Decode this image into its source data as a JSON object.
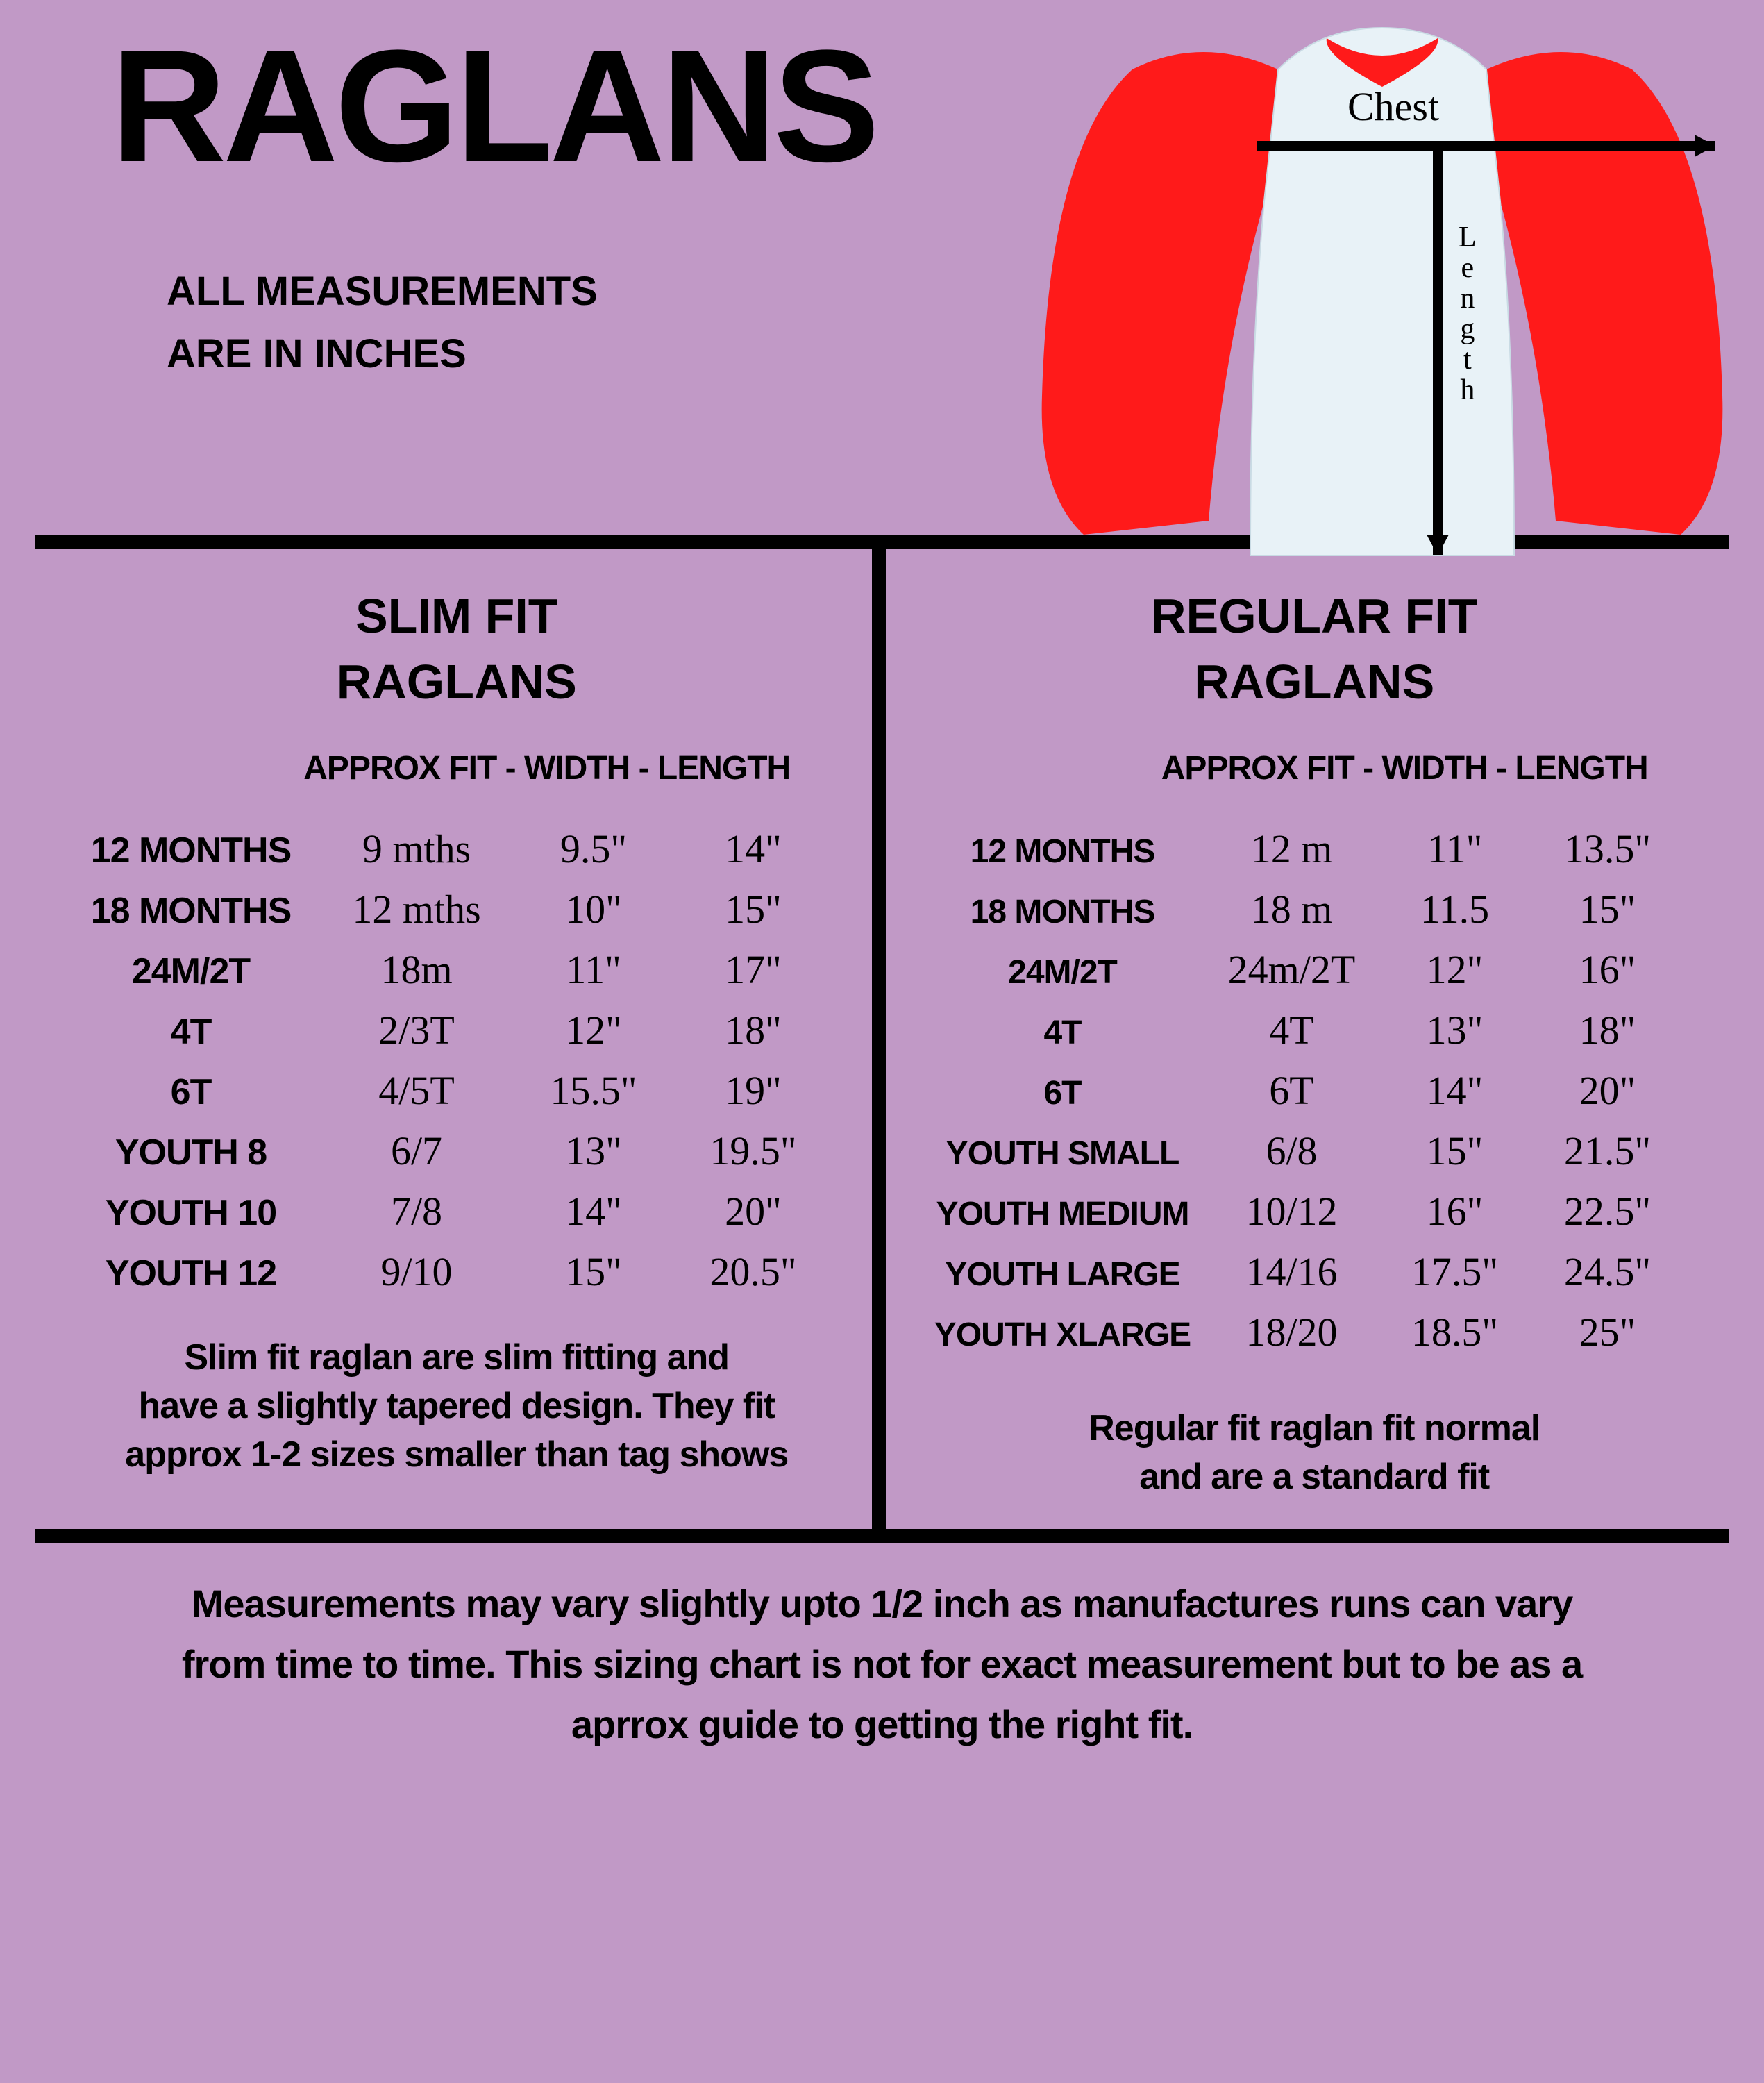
{
  "header": {
    "title": "RAGLANS",
    "subtitle_line1": "ALL MEASUREMENTS",
    "subtitle_line2": "ARE IN INCHES",
    "shirt": {
      "body_color": "#e8f2f7",
      "sleeve_color": "#ff1a1a",
      "chest_label": "Chest",
      "length_label": "Length"
    }
  },
  "colors": {
    "background": "#c199c6",
    "text": "#000000",
    "rule": "#000000"
  },
  "slim": {
    "title_line1": "SLIM FIT",
    "title_line2": "RAGLANS",
    "header_text": "APPROX FIT  -  WIDTH - LENGTH",
    "rows": [
      {
        "size": "12 MONTHS",
        "fit": "9 mths",
        "width": "9.5\"",
        "length": "14\""
      },
      {
        "size": "18 MONTHS",
        "fit": "12 mths",
        "width": "10\"",
        "length": "15\""
      },
      {
        "size": "24M/2T",
        "fit": "18m",
        "width": "11\"",
        "length": "17\""
      },
      {
        "size": "4T",
        "fit": "2/3T",
        "width": "12\"",
        "length": "18\""
      },
      {
        "size": "6T",
        "fit": "4/5T",
        "width": "15.5\"",
        "length": "19\""
      },
      {
        "size": "YOUTH 8",
        "fit": "6/7",
        "width": "13\"",
        "length": "19.5\""
      },
      {
        "size": "YOUTH 10",
        "fit": "7/8",
        "width": "14\"",
        "length": "20\""
      },
      {
        "size": "YOUTH 12",
        "fit": "9/10",
        "width": "15\"",
        "length": "20.5\""
      }
    ],
    "note_line1": "Slim fit raglan are slim fitting and",
    "note_line2": "have a slightly tapered design. They fit",
    "note_line3": "approx 1-2 sizes smaller than tag shows"
  },
  "regular": {
    "title_line1": "REGULAR FIT",
    "title_line2": "RAGLANS",
    "header_text": "APPROX FIT  -  WIDTH - LENGTH",
    "rows": [
      {
        "size": "12 MONTHS",
        "fit": "12 m",
        "width": "11\"",
        "length": "13.5\""
      },
      {
        "size": "18 MONTHS",
        "fit": "18 m",
        "width": "11.5",
        "length": "15\""
      },
      {
        "size": "24M/2T",
        "fit": "24m/2T",
        "width": "12\"",
        "length": "16\""
      },
      {
        "size": "4T",
        "fit": "4T",
        "width": "13\"",
        "length": "18\""
      },
      {
        "size": "6T",
        "fit": "6T",
        "width": "14\"",
        "length": "20\""
      },
      {
        "size": "YOUTH SMALL",
        "fit": "6/8",
        "width": "15\"",
        "length": "21.5\""
      },
      {
        "size": "YOUTH MEDIUM",
        "fit": "10/12",
        "width": "16\"",
        "length": "22.5\""
      },
      {
        "size": "YOUTH LARGE",
        "fit": "14/16",
        "width": "17.5\"",
        "length": "24.5\""
      },
      {
        "size": "YOUTH XLARGE",
        "fit": "18/20",
        "width": "18.5\"",
        "length": "25\""
      }
    ],
    "note_line1": "Regular fit raglan fit normal",
    "note_line2": "and are a standard fit"
  },
  "footer": {
    "line1": "Measurements may vary slightly upto 1/2 inch as manufactures runs can vary",
    "line2": "from time to time. This sizing chart is not for exact measurement but to be as a",
    "line3": "aprrox guide to getting the right fit."
  }
}
